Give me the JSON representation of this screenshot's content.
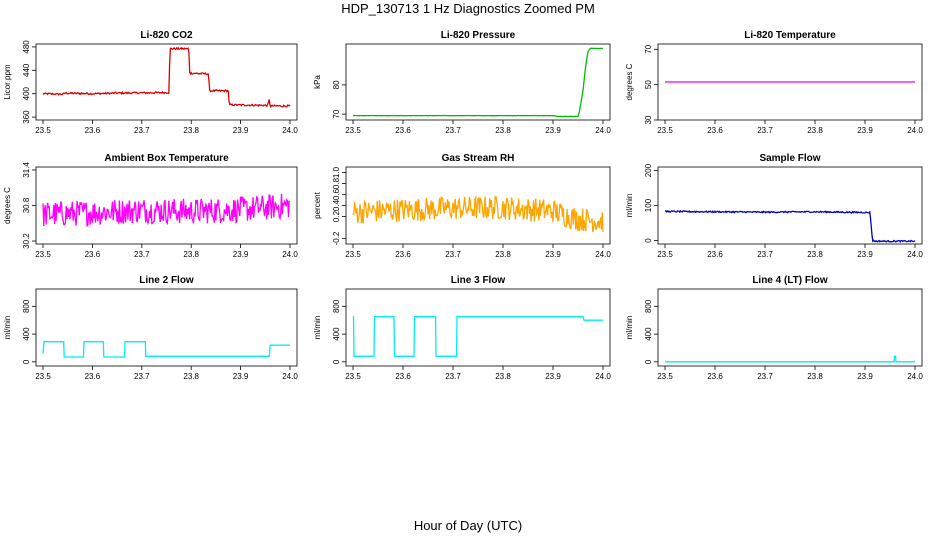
{
  "figure": {
    "title": "HDP_130713  1 Hz Diagnostics Zoomed PM",
    "xlabel": "Hour of Day (UTC)"
  },
  "chart_data": [
    {
      "type": "line",
      "title": "Li-820 CO2",
      "ylabel": "Licor ppm",
      "color": "#dd0000",
      "xlim": [
        23.5,
        24.0
      ],
      "ylim": [
        355,
        485
      ],
      "xticks": [
        23.5,
        23.6,
        23.7,
        23.8,
        23.9,
        24.0
      ],
      "xtick_labels": [
        "23.5",
        "23.6",
        "23.7",
        "23.8",
        "23.9",
        "24.0"
      ],
      "yticks": [
        360,
        400,
        440,
        480
      ],
      "ytick_labels": [
        "360",
        "400",
        "440",
        "480"
      ],
      "noise": 1.5,
      "series": [
        {
          "x": [
            23.5,
            23.54,
            23.545,
            23.6,
            23.65,
            23.755,
            23.757,
            23.795,
            23.797,
            23.835,
            23.837,
            23.875,
            23.877,
            23.955,
            23.958,
            23.96,
            23.962,
            24.0
          ],
          "y": [
            400,
            399,
            401,
            400,
            401,
            402,
            477,
            477,
            435,
            434,
            405,
            405,
            381,
            380,
            390,
            378,
            379,
            379
          ]
        }
      ]
    },
    {
      "type": "line",
      "title": "Li-820 Pressure",
      "ylabel": "kPa",
      "color": "#00bb00",
      "xlim": [
        23.5,
        24.0
      ],
      "ylim": [
        68,
        94
      ],
      "xticks": [
        23.5,
        23.6,
        23.7,
        23.8,
        23.9,
        24.0
      ],
      "xtick_labels": [
        "23.5",
        "23.6",
        "23.7",
        "23.8",
        "23.9",
        "24.0"
      ],
      "yticks": [
        70,
        80
      ],
      "ytick_labels": [
        "70",
        "80"
      ],
      "noise": 0.05,
      "series": [
        {
          "x": [
            23.5,
            23.9,
            23.91,
            23.95,
            23.953,
            23.96,
            23.965,
            23.97,
            23.975,
            24.0
          ],
          "y": [
            69.5,
            69.5,
            69.2,
            69.2,
            71,
            78,
            86,
            91.5,
            92.5,
            92.5
          ]
        }
      ]
    },
    {
      "type": "line",
      "title": "Li-820 Temperature",
      "ylabel": "degrees C",
      "color": "#ee00ee",
      "xlim": [
        23.5,
        24.0
      ],
      "ylim": [
        30,
        73
      ],
      "xticks": [
        23.5,
        23.6,
        23.7,
        23.8,
        23.9,
        24.0
      ],
      "xtick_labels": [
        "23.5",
        "23.6",
        "23.7",
        "23.8",
        "23.9",
        "24.0"
      ],
      "yticks": [
        30,
        50,
        70
      ],
      "ytick_labels": [
        "30",
        "50",
        "70"
      ],
      "noise": 0,
      "series": [
        {
          "x": [
            23.5,
            24.0
          ],
          "y": [
            51.5,
            51.5
          ]
        }
      ]
    },
    {
      "type": "line",
      "title": "Ambient Box Temperature",
      "ylabel": "degrees C",
      "color": "#ff00ff",
      "xlim": [
        23.5,
        24.0
      ],
      "ylim": [
        30.15,
        31.45
      ],
      "xticks": [
        23.5,
        23.6,
        23.7,
        23.8,
        23.9,
        24.0
      ],
      "xtick_labels": [
        "23.5",
        "23.6",
        "23.7",
        "23.8",
        "23.9",
        "24.0"
      ],
      "yticks": [
        30.2,
        30.8,
        31.4
      ],
      "ytick_labels": [
        "30.2",
        "30.8",
        "31.4"
      ],
      "noise": 0.22,
      "series": [
        {
          "x": [
            23.5,
            23.6,
            23.7,
            23.8,
            23.9,
            24.0
          ],
          "y": [
            30.65,
            30.68,
            30.72,
            30.7,
            30.73,
            30.8
          ]
        }
      ]
    },
    {
      "type": "line",
      "title": "Gas Stream RH",
      "ylabel": "percent",
      "color": "#ffa500",
      "xlim": [
        23.5,
        24.0
      ],
      "ylim": [
        -0.3,
        1.1
      ],
      "xticks": [
        23.5,
        23.6,
        23.7,
        23.8,
        23.9,
        24.0
      ],
      "xtick_labels": [
        "23.5",
        "23.6",
        "23.7",
        "23.8",
        "23.9",
        "24.0"
      ],
      "yticks": [
        -0.2,
        0.2,
        0.4,
        0.6,
        0.8,
        1.0
      ],
      "ytick_labels": [
        "-0.2",
        "0.2",
        "0.4",
        "0.6",
        "0.8",
        "1.0"
      ],
      "noise": 0.22,
      "series": [
        {
          "x": [
            23.5,
            23.6,
            23.7,
            23.8,
            23.9,
            23.95,
            24.0
          ],
          "y": [
            0.28,
            0.32,
            0.35,
            0.36,
            0.3,
            0.15,
            0.12
          ]
        }
      ]
    },
    {
      "type": "line",
      "title": "Sample Flow",
      "ylabel": "ml/min",
      "color": "#0000cc",
      "xlim": [
        23.5,
        24.0
      ],
      "ylim": [
        -10,
        210
      ],
      "xticks": [
        23.5,
        23.6,
        23.7,
        23.8,
        23.9,
        24.0
      ],
      "xtick_labels": [
        "23.5",
        "23.6",
        "23.7",
        "23.8",
        "23.9",
        "24.0"
      ],
      "yticks": [
        0,
        100,
        200
      ],
      "ytick_labels": [
        "0",
        "100",
        "200"
      ],
      "noise": 2,
      "series": [
        {
          "x": [
            23.5,
            23.6,
            23.7,
            23.8,
            23.91,
            23.915,
            23.92,
            24.0
          ],
          "y": [
            83,
            82,
            81,
            82,
            80,
            0,
            -2,
            -2
          ]
        }
      ]
    },
    {
      "type": "line",
      "title": "Line 2 Flow",
      "ylabel": "ml/min",
      "color": "#00eeee",
      "xlim": [
        23.5,
        24.0
      ],
      "ylim": [
        -60,
        1050
      ],
      "xticks": [
        23.5,
        23.6,
        23.7,
        23.8,
        23.9,
        24.0
      ],
      "xtick_labels": [
        "23.5",
        "23.6",
        "23.7",
        "23.8",
        "23.9",
        "24.0"
      ],
      "yticks": [
        0,
        400,
        800
      ],
      "ytick_labels": [
        "0",
        "400",
        "800"
      ],
      "noise": 0,
      "series": [
        {
          "x": [
            23.5,
            23.502,
            23.542,
            23.543,
            23.582,
            23.583,
            23.622,
            23.623,
            23.665,
            23.666,
            23.707,
            23.708,
            23.958,
            23.96,
            24.0
          ],
          "y": [
            120,
            290,
            290,
            70,
            70,
            290,
            290,
            70,
            70,
            290,
            290,
            80,
            80,
            240,
            240
          ]
        }
      ]
    },
    {
      "type": "line",
      "title": "Line 3 Flow",
      "ylabel": "ml/min",
      "color": "#00eeee",
      "xlim": [
        23.5,
        24.0
      ],
      "ylim": [
        -60,
        1050
      ],
      "xticks": [
        23.5,
        23.6,
        23.7,
        23.8,
        23.9,
        24.0
      ],
      "xtick_labels": [
        "23.5",
        "23.6",
        "23.7",
        "23.8",
        "23.9",
        "24.0"
      ],
      "yticks": [
        0,
        400,
        800
      ],
      "ytick_labels": [
        "0",
        "400",
        "800"
      ],
      "noise": 0,
      "series": [
        {
          "x": [
            23.5,
            23.501,
            23.502,
            23.542,
            23.543,
            23.582,
            23.583,
            23.622,
            23.623,
            23.665,
            23.666,
            23.707,
            23.708,
            23.96,
            23.962,
            24.0
          ],
          "y": [
            650,
            650,
            80,
            80,
            650,
            650,
            80,
            80,
            650,
            650,
            80,
            80,
            650,
            650,
            600,
            600
          ]
        }
      ]
    },
    {
      "type": "line",
      "title": "Line 4 (LT) Flow",
      "ylabel": "ml/min",
      "color": "#00eeee",
      "xlim": [
        23.5,
        24.0
      ],
      "ylim": [
        -60,
        1050
      ],
      "xticks": [
        23.5,
        23.6,
        23.7,
        23.8,
        23.9,
        24.0
      ],
      "xtick_labels": [
        "23.5",
        "23.6",
        "23.7",
        "23.8",
        "23.9",
        "24.0"
      ],
      "yticks": [
        0,
        400,
        800
      ],
      "ytick_labels": [
        "0",
        "400",
        "800"
      ],
      "noise": 0,
      "series": [
        {
          "x": [
            23.5,
            23.958,
            23.959,
            23.961,
            23.962,
            24.0
          ],
          "y": [
            0,
            0,
            80,
            80,
            0,
            0
          ]
        }
      ]
    }
  ]
}
